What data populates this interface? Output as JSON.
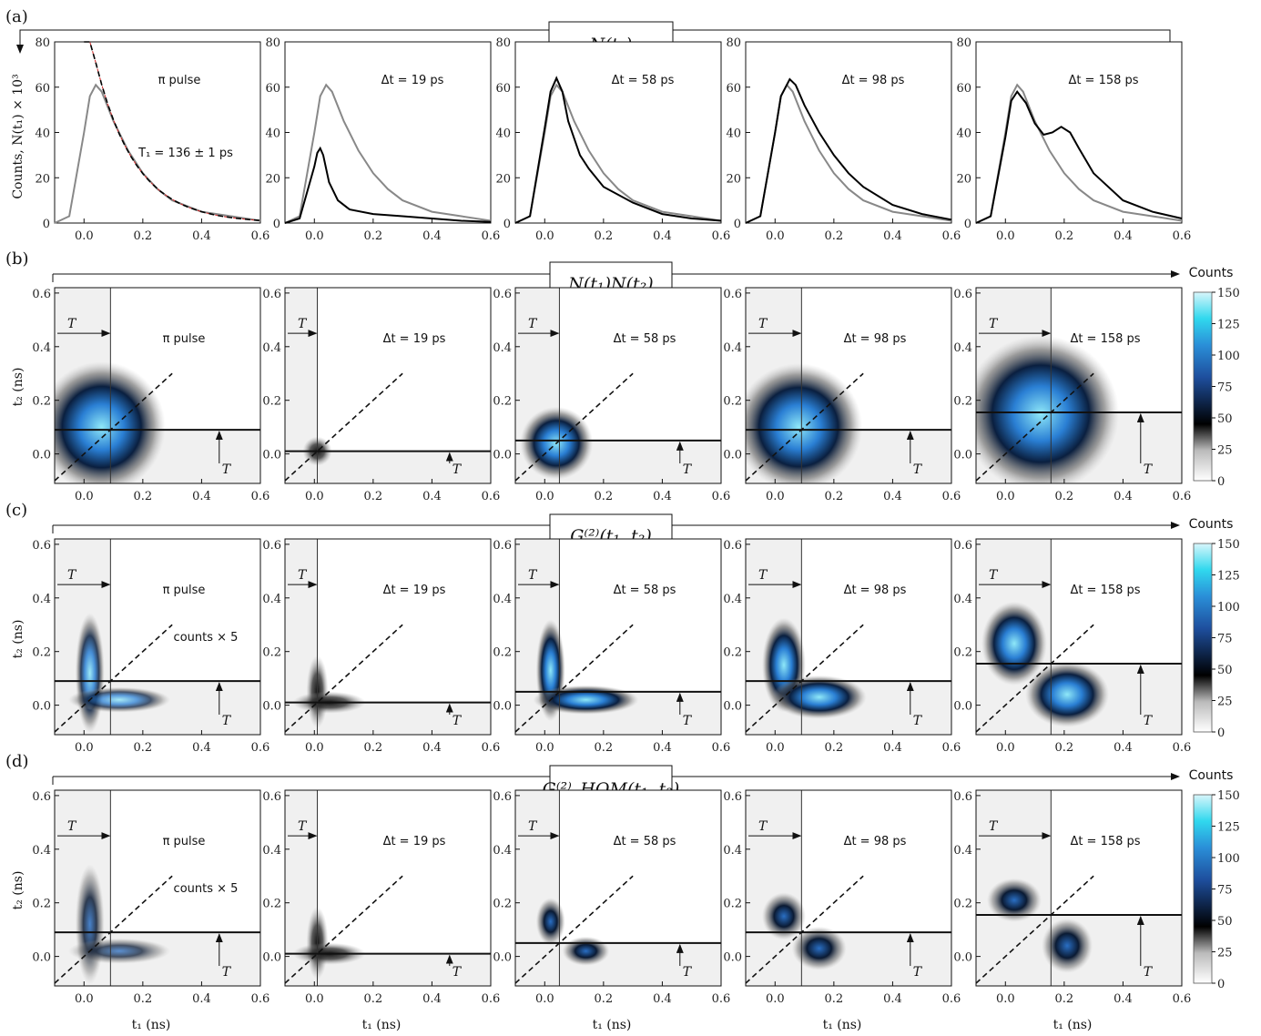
{
  "rows": [
    {
      "label": "(a)",
      "box": "N(t₁)"
    },
    {
      "label": "(b)",
      "box": "N(t₁)N(t₂)"
    },
    {
      "label": "(c)",
      "box": "G⁽²⁾(t₁, t₂)"
    },
    {
      "label": "(d)",
      "box": "G⁽²⁾_HOM(t₁, t₂)"
    }
  ],
  "panel_labels": [
    "π pulse",
    "Δt = 19 ps",
    "Δt = 58 ps",
    "Δt = 98 ps",
    "Δt = 158 ps"
  ],
  "fit_label": "T₁ = 136 ± 1 ps",
  "counts_scale_label": "counts × 5",
  "arrow_label": "T",
  "axes": {
    "a_ylabel": "Counts, N(t₁) × 10³",
    "t2_label": "t₂ (ns)",
    "t1_label": "t₁ (ns)",
    "x_ticks": [
      "0.0",
      "0.2",
      "0.4",
      "0.6"
    ],
    "a_y_ticks": [
      "0",
      "20",
      "40",
      "60",
      "80"
    ],
    "map_y_ticks": [
      "0.0",
      "0.2",
      "0.4",
      "0.6"
    ]
  },
  "colorbar": {
    "title": "Counts",
    "ticks": [
      "0",
      "25",
      "50",
      "75",
      "100",
      "125",
      "150"
    ]
  },
  "colors": {
    "reference_curve": "#888888",
    "measured_curve": "#000000",
    "fit": "#cc2222",
    "map_high": "#8fe8f8",
    "map_mid": "#2a7fd4",
    "map_low": "#000000"
  },
  "chart_data": {
    "type": "line",
    "title": "",
    "xlabel": "t₁ (ns)",
    "ylabel": "Counts, N(t₁) × 10³",
    "xlim": [
      -0.1,
      0.6
    ],
    "ylim": [
      0,
      80
    ],
    "delays_ps": [
      0,
      19,
      58,
      98,
      158
    ],
    "T_values_ns": [
      0.09,
      0.01,
      0.05,
      0.09,
      0.155
    ],
    "fit": {
      "T1_ps": 136,
      "T1_err_ps": 1
    },
    "reference_curve": {
      "x": [
        -0.1,
        -0.05,
        0.0,
        0.02,
        0.04,
        0.06,
        0.1,
        0.15,
        0.2,
        0.25,
        0.3,
        0.4,
        0.5,
        0.6
      ],
      "y": [
        0,
        3,
        40,
        56,
        61,
        58,
        45,
        32,
        22,
        15,
        10,
        5,
        3,
        1
      ]
    },
    "series": [
      {
        "name": "",
        "x": [
          -0.1,
          -0.05,
          0.0,
          0.02,
          0.04,
          0.06,
          0.1,
          0.15,
          0.2,
          0.25,
          0.3,
          0.4,
          0.5,
          0.6
        ],
        "y": [
          0,
          3,
          40,
          56,
          61,
          58,
          45,
          32,
          22,
          15,
          10,
          5,
          3,
          1
        ]
      },
      {
        "name": "",
        "x": [
          -0.1,
          -0.05,
          0.0,
          0.01,
          0.02,
          0.03,
          0.05,
          0.08,
          0.12,
          0.2,
          0.3,
          0.4,
          0.5,
          0.6
        ],
        "y": [
          0,
          2,
          25,
          31,
          33,
          30,
          18,
          10,
          6,
          4,
          3,
          2,
          1,
          0.5
        ]
      },
      {
        "name": "",
        "x": [
          -0.1,
          -0.05,
          0.0,
          0.02,
          0.04,
          0.06,
          0.08,
          0.12,
          0.15,
          0.2,
          0.3,
          0.4,
          0.5,
          0.6
        ],
        "y": [
          0,
          3,
          42,
          58,
          64,
          58,
          45,
          30,
          24,
          16,
          9,
          4,
          2,
          1
        ]
      },
      {
        "name": "",
        "x": [
          -0.1,
          -0.05,
          0.0,
          0.02,
          0.05,
          0.07,
          0.1,
          0.15,
          0.2,
          0.25,
          0.3,
          0.4,
          0.5,
          0.6
        ],
        "y": [
          0,
          3,
          40,
          56,
          63.5,
          61,
          52,
          40,
          30,
          22,
          16,
          8,
          4,
          1.5
        ]
      },
      {
        "name": "",
        "x": [
          -0.1,
          -0.05,
          0.0,
          0.02,
          0.04,
          0.07,
          0.1,
          0.13,
          0.16,
          0.19,
          0.22,
          0.25,
          0.3,
          0.4,
          0.5,
          0.6
        ],
        "y": [
          0,
          3,
          38,
          54,
          58,
          53,
          44,
          39,
          40,
          42.5,
          40,
          33,
          22,
          10,
          5,
          2
        ]
      }
    ]
  }
}
